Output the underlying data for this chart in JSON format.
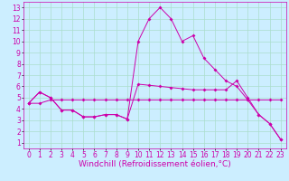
{
  "xlabel": "Windchill (Refroidissement éolien,°C)",
  "background_color": "#cceeff",
  "line_color": "#cc00aa",
  "xlim": [
    -0.5,
    23.5
  ],
  "ylim": [
    0.5,
    13.5
  ],
  "xticks": [
    0,
    1,
    2,
    3,
    4,
    5,
    6,
    7,
    8,
    9,
    10,
    11,
    12,
    13,
    14,
    15,
    16,
    17,
    18,
    19,
    20,
    21,
    22,
    23
  ],
  "yticks": [
    1,
    2,
    3,
    4,
    5,
    6,
    7,
    8,
    9,
    10,
    11,
    12,
    13
  ],
  "line1_x": [
    0,
    1,
    2,
    3,
    4,
    5,
    6,
    7,
    8,
    9,
    10,
    11,
    12,
    13,
    14,
    15,
    16,
    17,
    18,
    19,
    20,
    21,
    22,
    23
  ],
  "line1_y": [
    4.5,
    5.5,
    5.0,
    3.9,
    3.9,
    3.3,
    3.3,
    3.5,
    3.5,
    3.1,
    10.0,
    12.0,
    13.0,
    12.0,
    10.0,
    10.5,
    8.5,
    7.5,
    6.5,
    6.0,
    4.8,
    3.5,
    2.7,
    1.3
  ],
  "line2_x": [
    0,
    1,
    2,
    3,
    4,
    5,
    6,
    7,
    8,
    9,
    10,
    11,
    12,
    13,
    14,
    15,
    16,
    17,
    18,
    19,
    20,
    21,
    22,
    23
  ],
  "line2_y": [
    4.5,
    5.5,
    5.0,
    3.9,
    3.9,
    3.3,
    3.3,
    3.5,
    3.5,
    3.1,
    6.2,
    6.1,
    6.0,
    5.9,
    5.8,
    5.7,
    5.7,
    5.7,
    5.7,
    6.5,
    5.0,
    3.5,
    2.7,
    1.3
  ],
  "line3_x": [
    0,
    1,
    2,
    3,
    4,
    5,
    6,
    7,
    8,
    9,
    10,
    11,
    12,
    13,
    14,
    15,
    16,
    17,
    18,
    19,
    20,
    21,
    22,
    23
  ],
  "line3_y": [
    4.5,
    4.5,
    4.8,
    4.8,
    4.8,
    4.8,
    4.8,
    4.8,
    4.8,
    4.8,
    4.8,
    4.8,
    4.8,
    4.8,
    4.8,
    4.8,
    4.8,
    4.8,
    4.8,
    4.8,
    4.8,
    4.8,
    4.8,
    4.8
  ],
  "grid_color": "#aaddcc",
  "tick_fontsize": 5.5,
  "xlabel_fontsize": 6.5
}
